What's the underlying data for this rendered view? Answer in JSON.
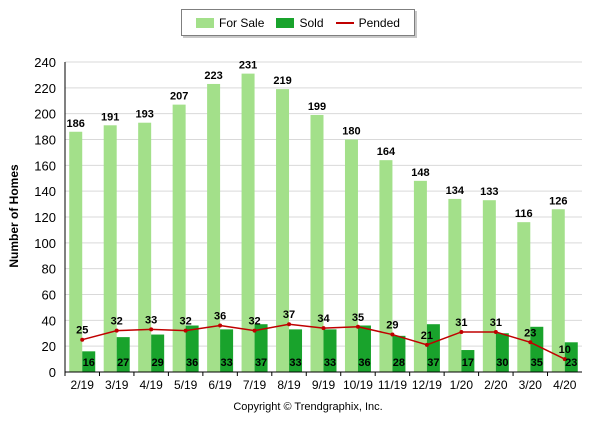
{
  "chart_data": {
    "type": "bar",
    "categories": [
      "2/19",
      "3/19",
      "4/19",
      "5/19",
      "6/19",
      "7/19",
      "8/19",
      "9/19",
      "10/19",
      "11/19",
      "12/19",
      "1/20",
      "2/20",
      "3/20",
      "4/20"
    ],
    "series": [
      {
        "name": "For Sale",
        "type": "bar",
        "color": "#a3e08a",
        "values": [
          186,
          191,
          193,
          207,
          223,
          231,
          219,
          199,
          180,
          164,
          148,
          134,
          133,
          116,
          126
        ]
      },
      {
        "name": "Sold",
        "type": "bar",
        "color": "#19a32c",
        "values": [
          16,
          27,
          29,
          36,
          33,
          37,
          33,
          33,
          36,
          28,
          37,
          17,
          30,
          35,
          23
        ]
      },
      {
        "name": "Pended",
        "type": "line",
        "color": "#c00000",
        "values": [
          25,
          32,
          33,
          32,
          36,
          32,
          37,
          34,
          35,
          29,
          21,
          31,
          31,
          23,
          10
        ]
      }
    ],
    "ylabel": "Number of Homes",
    "xlabel": "",
    "ylim": [
      0,
      240
    ],
    "yticks": [
      0,
      20,
      40,
      60,
      80,
      100,
      120,
      140,
      160,
      180,
      200,
      220,
      240
    ],
    "grid": true,
    "legend_position": "top-center"
  },
  "footer": {
    "copyright": "Copyright © Trendgraphix, Inc."
  }
}
